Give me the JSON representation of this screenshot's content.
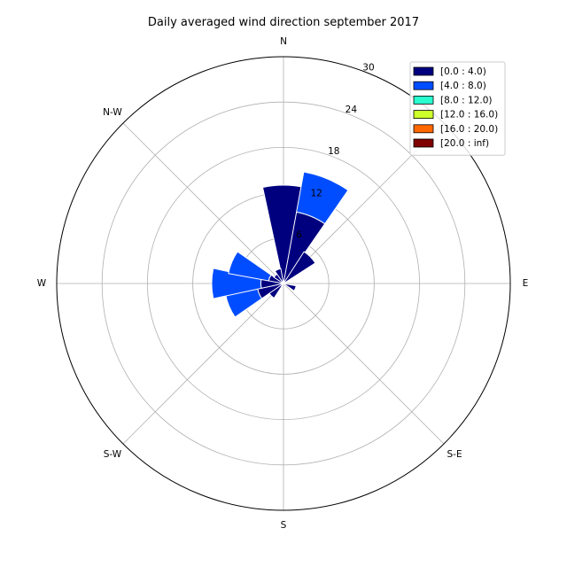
{
  "chart_data": {
    "type": "windrose",
    "title": "Daily averaged wind direction september 2017",
    "directions": [
      "N",
      "N-W",
      "W",
      "S-W",
      "S",
      "S-E",
      "E"
    ],
    "radial_ticks": [
      6,
      12,
      18,
      24,
      30
    ],
    "radial_max": 30,
    "legend_position": "top-right",
    "bins": [
      {
        "label": "[0.0 : 4.0)",
        "color": "#00007f"
      },
      {
        "label": "[4.0 : 8.0)",
        "color": "#004dff"
      },
      {
        "label": "[8.0 : 12.0)",
        "color": "#29ffce"
      },
      {
        "label": "[12.0 : 16.0)",
        "color": "#ceff29"
      },
      {
        "label": "[16.0 : 20.0)",
        "color": "#ff6800"
      },
      {
        "label": "[20.0 : inf)",
        "color": "#7f0000"
      }
    ],
    "sectors": [
      {
        "angle_deg": 0,
        "values": [
          13.0,
          0,
          0,
          0,
          0,
          0
        ]
      },
      {
        "angle_deg": 22.5,
        "values": [
          9.6,
          5.4,
          0,
          0,
          0,
          0
        ]
      },
      {
        "angle_deg": 45,
        "values": [
          5.0,
          0,
          0,
          0,
          0,
          0
        ]
      },
      {
        "angle_deg": 112.5,
        "values": [
          1.7,
          0,
          0,
          0,
          0,
          0
        ]
      },
      {
        "angle_deg": 225,
        "values": [
          2.3,
          0,
          0,
          0,
          0,
          0
        ]
      },
      {
        "angle_deg": 247.5,
        "values": [
          3.5,
          4.3,
          0,
          0,
          0,
          0
        ]
      },
      {
        "angle_deg": 270,
        "values": [
          3.0,
          6.5,
          0,
          0,
          0,
          0
        ]
      },
      {
        "angle_deg": 292.5,
        "values": [
          2.0,
          5.4,
          0,
          0,
          0,
          0
        ]
      },
      {
        "angle_deg": 315,
        "values": [
          1.5,
          0,
          0,
          0,
          0,
          0
        ]
      },
      {
        "angle_deg": 337.5,
        "values": [
          2.0,
          0,
          0,
          0,
          0,
          0
        ]
      }
    ]
  }
}
